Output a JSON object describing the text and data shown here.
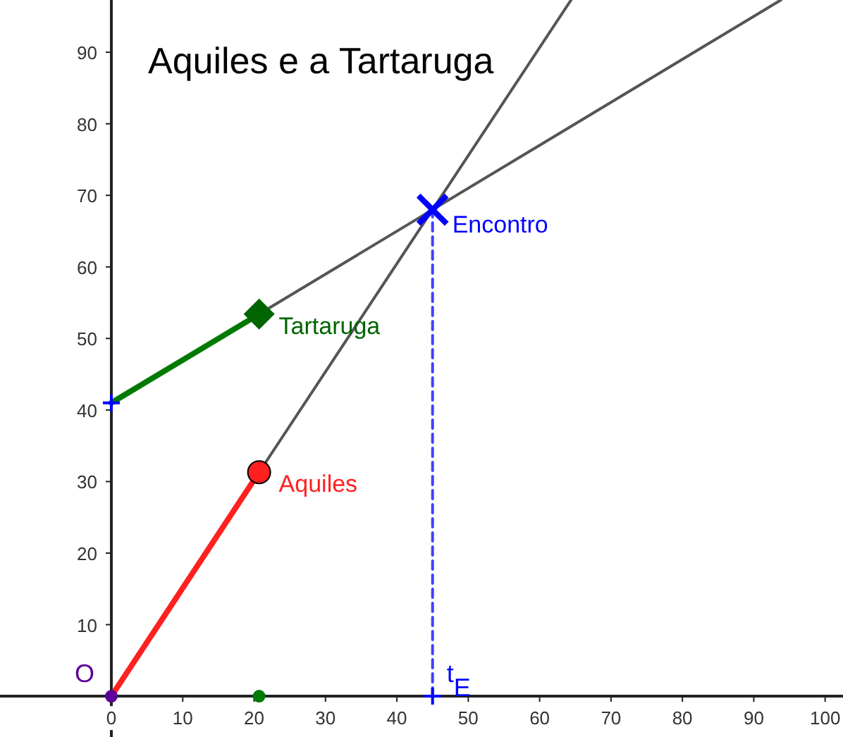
{
  "chart_data": {
    "type": "line",
    "title": "Aquiles e a Tartaruga",
    "xlim": [
      -15.6,
      102.5
    ],
    "ylim": [
      -5.7,
      97.3
    ],
    "xticks": [
      0,
      10,
      20,
      30,
      40,
      50,
      60,
      70,
      80,
      90,
      100
    ],
    "yticks": [
      10,
      20,
      30,
      40,
      50,
      60,
      70,
      80,
      90
    ],
    "grid": false,
    "legend": false,
    "series": [
      {
        "color": "#ff2020",
        "x": [
          0,
          20.7
        ],
        "values": [
          0,
          31.3
        ],
        "line_style": "solid"
      },
      {
        "color": "#007a00",
        "x": [
          0,
          20.7
        ],
        "values": [
          41,
          53.4
        ],
        "line_style": "solid"
      },
      {
        "color": "#555555",
        "x": [
          20.7,
          64.4
        ],
        "values": [
          31.3,
          97.3
        ],
        "line_style": "solid"
      },
      {
        "color": "#555555",
        "x": [
          20.7,
          93.8
        ],
        "values": [
          53.4,
          97.3
        ],
        "line_style": "solid"
      },
      {
        "color": "#4040ff",
        "x": [
          45,
          45
        ],
        "values": [
          0,
          68
        ],
        "line_style": "dashed"
      },
      {
        "type": "scatter",
        "name": "Aquiles",
        "color": "#ff2020",
        "x": [
          20.7
        ],
        "values": [
          31.3
        ],
        "marker": "circle"
      },
      {
        "type": "scatter",
        "name": "Tartaruga",
        "color": "#006400",
        "x": [
          20.7
        ],
        "values": [
          53.4
        ],
        "marker": "diamond"
      },
      {
        "type": "scatter",
        "name": "Encontro",
        "color": "#0000ff",
        "x": [
          45
        ],
        "values": [
          68
        ],
        "marker": "cross"
      },
      {
        "type": "scatter",
        "color": "#5c0099",
        "x": [
          0
        ],
        "values": [
          0
        ],
        "marker": "circle"
      },
      {
        "type": "scatter",
        "color": "#007a00",
        "x": [
          20.7
        ],
        "values": [
          0
        ],
        "marker": "circle"
      },
      {
        "type": "scatter",
        "color": "#0000ff",
        "x": [
          0,
          45
        ],
        "values": [
          41,
          0
        ],
        "marker": "plus"
      }
    ],
    "annotations": [
      {
        "text": "O",
        "x": 0,
        "y": 0
      },
      {
        "text": "t$_{E}$",
        "x": 45,
        "y": 0
      }
    ]
  }
}
